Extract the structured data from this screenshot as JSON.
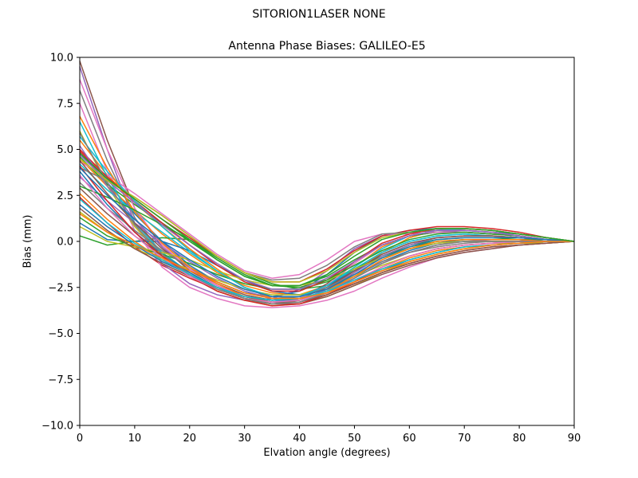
{
  "figure": {
    "suptitle": "SITORION1LASER  NONE"
  },
  "chart_data": {
    "type": "line",
    "title": "Antenna Phase Biases: GALILEO-E5",
    "xlabel": "Elvation angle (degrees)",
    "ylabel": "Bias (mm)",
    "xlim": [
      0,
      90
    ],
    "ylim": [
      -10,
      10
    ],
    "xticks": [
      0,
      10,
      20,
      30,
      40,
      50,
      60,
      70,
      80,
      90
    ],
    "xtick_labels": [
      "0",
      "10",
      "20",
      "30",
      "40",
      "50",
      "60",
      "70",
      "80",
      "90"
    ],
    "yticks": [
      10,
      7.5,
      5,
      2.5,
      0,
      -2.5,
      -5,
      -7.5,
      -10
    ],
    "ytick_labels": [
      "10.0",
      "7.5",
      "5.0",
      "2.5",
      "0.0",
      "−2.5",
      "−5.0",
      "−7.5",
      "−10.0"
    ],
    "grid": false,
    "legend": "none",
    "x": [
      0,
      5,
      10,
      15,
      20,
      25,
      30,
      35,
      40,
      45,
      50,
      55,
      60,
      65,
      70,
      75,
      80,
      85,
      90
    ],
    "series": [
      {
        "color": "#1f77b4",
        "values": [
          4.8,
          3.2,
          1.5,
          0.0,
          -1.3,
          -2.2,
          -2.8,
          -3.0,
          -2.7,
          -1.8,
          -0.6,
          0.3,
          0.6,
          0.7,
          0.6,
          0.5,
          0.4,
          0.2,
          0.0
        ]
      },
      {
        "color": "#ff7f0e",
        "values": [
          4.5,
          3.0,
          1.7,
          0.4,
          -0.7,
          -1.7,
          -2.4,
          -2.8,
          -2.9,
          -2.4,
          -1.4,
          -0.3,
          0.3,
          0.6,
          0.7,
          0.6,
          0.4,
          0.2,
          0.0
        ]
      },
      {
        "color": "#2ca02c",
        "values": [
          0.3,
          -0.2,
          0.0,
          0.2,
          0.1,
          -0.8,
          -1.7,
          -2.3,
          -2.6,
          -2.4,
          -1.6,
          -0.8,
          -0.2,
          0.1,
          0.2,
          0.2,
          0.1,
          0.1,
          0.0
        ]
      },
      {
        "color": "#d62728",
        "values": [
          2.4,
          1.0,
          -0.3,
          -1.3,
          -2.0,
          -2.6,
          -3.1,
          -3.4,
          -3.3,
          -2.9,
          -2.3,
          -1.7,
          -1.2,
          -0.8,
          -0.5,
          -0.3,
          -0.2,
          -0.1,
          0.0
        ]
      },
      {
        "color": "#9467bd",
        "values": [
          9.5,
          5.0,
          1.0,
          -1.2,
          -2.3,
          -2.9,
          -3.2,
          -3.1,
          -2.6,
          -1.6,
          -0.4,
          0.3,
          0.5,
          0.6,
          0.5,
          0.4,
          0.3,
          0.1,
          0.0
        ]
      },
      {
        "color": "#8c564b",
        "values": [
          9.8,
          5.5,
          1.8,
          -0.3,
          -1.6,
          -2.4,
          -3.0,
          -3.3,
          -3.1,
          -2.3,
          -1.1,
          -0.2,
          0.3,
          0.5,
          0.5,
          0.4,
          0.3,
          0.1,
          0.0
        ]
      },
      {
        "color": "#e377c2",
        "values": [
          7.5,
          3.8,
          0.6,
          -1.4,
          -2.5,
          -3.1,
          -3.5,
          -3.6,
          -3.5,
          -3.2,
          -2.7,
          -2.0,
          -1.4,
          -0.9,
          -0.6,
          -0.4,
          -0.2,
          -0.1,
          0.0
        ]
      },
      {
        "color": "#7f7f7f",
        "values": [
          8.2,
          4.4,
          1.3,
          -0.7,
          -1.9,
          -2.7,
          -3.2,
          -3.4,
          -3.2,
          -2.6,
          -1.6,
          -0.7,
          -0.1,
          0.2,
          0.3,
          0.3,
          0.2,
          0.1,
          0.0
        ]
      },
      {
        "color": "#bcbd22",
        "values": [
          6.0,
          3.0,
          0.8,
          -0.8,
          -1.9,
          -2.7,
          -3.2,
          -3.5,
          -3.4,
          -3.0,
          -2.4,
          -1.7,
          -1.1,
          -0.7,
          -0.4,
          -0.2,
          -0.1,
          -0.1,
          0.0
        ]
      },
      {
        "color": "#17becf",
        "values": [
          4.2,
          2.8,
          1.6,
          0.5,
          -0.6,
          -1.6,
          -2.5,
          -3.0,
          -3.0,
          -2.4,
          -1.5,
          -0.6,
          0.0,
          0.3,
          0.4,
          0.3,
          0.2,
          0.1,
          0.0
        ]
      },
      {
        "color": "#1f77b4",
        "values": [
          1.0,
          0.1,
          0.0,
          0.0,
          -0.5,
          -1.3,
          -2.1,
          -2.7,
          -2.9,
          -2.6,
          -1.9,
          -1.1,
          -0.5,
          -0.1,
          0.1,
          0.1,
          0.1,
          0.0,
          0.0
        ]
      },
      {
        "color": "#ff7f0e",
        "values": [
          5.5,
          3.6,
          2.1,
          0.8,
          -0.4,
          -1.5,
          -2.5,
          -3.1,
          -3.2,
          -2.7,
          -1.7,
          -0.6,
          0.2,
          0.6,
          0.7,
          0.6,
          0.4,
          0.2,
          0.0
        ]
      },
      {
        "color": "#2ca02c",
        "values": [
          4.6,
          3.1,
          2.0,
          1.0,
          0.0,
          -1.0,
          -1.9,
          -2.4,
          -2.4,
          -1.9,
          -1.0,
          -0.2,
          0.3,
          0.5,
          0.5,
          0.4,
          0.3,
          0.1,
          0.0
        ]
      },
      {
        "color": "#d62728",
        "values": [
          4.9,
          3.4,
          2.3,
          1.2,
          0.2,
          -0.8,
          -1.7,
          -2.2,
          -2.2,
          -1.5,
          -0.5,
          0.3,
          0.6,
          0.8,
          0.8,
          0.7,
          0.5,
          0.2,
          0.0
        ]
      },
      {
        "color": "#9467bd",
        "values": [
          3.5,
          2.2,
          1.0,
          -0.1,
          -1.1,
          -2.0,
          -2.7,
          -3.1,
          -3.1,
          -2.7,
          -2.0,
          -1.2,
          -0.6,
          -0.2,
          0.0,
          0.1,
          0.1,
          0.0,
          0.0
        ]
      },
      {
        "color": "#8c564b",
        "values": [
          2.9,
          1.5,
          0.3,
          -0.8,
          -1.7,
          -2.5,
          -3.1,
          -3.4,
          -3.4,
          -3.0,
          -2.4,
          -1.8,
          -1.3,
          -0.9,
          -0.6,
          -0.4,
          -0.2,
          -0.1,
          0.0
        ]
      },
      {
        "color": "#e377c2",
        "values": [
          4.3,
          3.6,
          2.6,
          1.5,
          0.4,
          -0.7,
          -1.6,
          -2.0,
          -1.8,
          -1.0,
          0.0,
          0.4,
          0.4,
          0.5,
          0.5,
          0.4,
          0.3,
          0.1,
          0.0
        ]
      },
      {
        "color": "#7f7f7f",
        "values": [
          4.0,
          3.3,
          2.4,
          1.4,
          0.3,
          -0.8,
          -1.7,
          -2.1,
          -2.0,
          -1.3,
          -0.3,
          0.4,
          0.5,
          0.6,
          0.6,
          0.5,
          0.3,
          0.1,
          0.0
        ]
      },
      {
        "color": "#bcbd22",
        "values": [
          1.6,
          0.5,
          -0.4,
          -1.0,
          -1.5,
          -2.1,
          -2.6,
          -2.9,
          -2.9,
          -2.5,
          -1.9,
          -1.3,
          -0.8,
          -0.4,
          -0.2,
          -0.1,
          -0.1,
          0.0,
          0.0
        ]
      },
      {
        "color": "#17becf",
        "values": [
          6.5,
          3.5,
          1.0,
          -0.6,
          -1.7,
          -2.5,
          -3.1,
          -3.3,
          -3.1,
          -2.5,
          -1.5,
          -0.6,
          0.0,
          0.3,
          0.4,
          0.3,
          0.2,
          0.1,
          0.0
        ]
      },
      {
        "color": "#1f77b4",
        "values": [
          3.8,
          2.0,
          0.5,
          -0.7,
          -1.7,
          -2.5,
          -3.0,
          -3.2,
          -3.0,
          -2.4,
          -1.6,
          -0.9,
          -0.4,
          -0.1,
          0.0,
          0.0,
          0.0,
          0.0,
          0.0
        ]
      },
      {
        "color": "#ff7f0e",
        "values": [
          2.6,
          1.2,
          0.0,
          -1.0,
          -1.9,
          -2.6,
          -3.1,
          -3.3,
          -3.2,
          -2.8,
          -2.2,
          -1.5,
          -0.9,
          -0.5,
          -0.3,
          -0.2,
          -0.1,
          0.0,
          0.0
        ]
      },
      {
        "color": "#2ca02c",
        "values": [
          1.3,
          0.3,
          -0.3,
          -0.7,
          -1.2,
          -1.8,
          -2.3,
          -2.6,
          -2.6,
          -2.2,
          -1.5,
          -0.8,
          -0.3,
          0.0,
          0.1,
          0.1,
          0.1,
          0.0,
          0.0
        ]
      },
      {
        "color": "#d62728",
        "values": [
          5.0,
          3.5,
          2.2,
          1.0,
          -0.2,
          -1.3,
          -2.2,
          -2.7,
          -2.7,
          -2.1,
          -1.1,
          -0.1,
          0.4,
          0.7,
          0.7,
          0.6,
          0.4,
          0.2,
          0.0
        ]
      },
      {
        "color": "#9467bd",
        "values": [
          5.2,
          3.0,
          1.2,
          -0.3,
          -1.5,
          -2.4,
          -3.0,
          -3.3,
          -3.2,
          -2.6,
          -1.7,
          -0.8,
          -0.2,
          0.2,
          0.3,
          0.3,
          0.2,
          0.1,
          0.0
        ]
      },
      {
        "color": "#8c564b",
        "values": [
          4.4,
          2.6,
          1.0,
          -0.4,
          -1.5,
          -2.3,
          -2.9,
          -3.2,
          -3.1,
          -2.5,
          -1.6,
          -0.7,
          -0.1,
          0.2,
          0.3,
          0.3,
          0.2,
          0.1,
          0.0
        ]
      },
      {
        "color": "#e377c2",
        "values": [
          8.8,
          5.0,
          1.8,
          -0.2,
          -1.5,
          -2.4,
          -3.0,
          -3.3,
          -3.1,
          -2.4,
          -1.2,
          -0.2,
          0.3,
          0.6,
          0.6,
          0.5,
          0.3,
          0.1,
          0.0
        ]
      },
      {
        "color": "#7f7f7f",
        "values": [
          3.2,
          1.8,
          0.6,
          -0.5,
          -1.4,
          -2.2,
          -2.8,
          -3.1,
          -3.0,
          -2.5,
          -1.8,
          -1.1,
          -0.6,
          -0.3,
          -0.1,
          0.0,
          0.0,
          0.0,
          0.0
        ]
      },
      {
        "color": "#bcbd22",
        "values": [
          0.8,
          0.0,
          -0.3,
          -0.6,
          -1.0,
          -1.6,
          -2.1,
          -2.4,
          -2.4,
          -2.1,
          -1.5,
          -0.9,
          -0.4,
          -0.1,
          0.0,
          0.0,
          0.0,
          0.0,
          0.0
        ]
      },
      {
        "color": "#17becf",
        "values": [
          5.7,
          3.8,
          2.2,
          0.8,
          -0.5,
          -1.6,
          -2.5,
          -3.0,
          -3.0,
          -2.4,
          -1.4,
          -0.4,
          0.3,
          0.6,
          0.7,
          0.6,
          0.4,
          0.2,
          0.0
        ]
      },
      {
        "color": "#1f77b4",
        "values": [
          2.0,
          0.8,
          -0.2,
          -1.1,
          -1.8,
          -2.5,
          -3.0,
          -3.2,
          -3.2,
          -2.8,
          -2.2,
          -1.6,
          -1.0,
          -0.6,
          -0.3,
          -0.2,
          -0.1,
          0.0,
          0.0
        ]
      },
      {
        "color": "#ff7f0e",
        "values": [
          6.8,
          4.0,
          1.6,
          -0.1,
          -1.4,
          -2.3,
          -3.0,
          -3.3,
          -3.2,
          -2.7,
          -1.9,
          -1.0,
          -0.4,
          0.0,
          0.1,
          0.1,
          0.1,
          0.0,
          0.0
        ]
      },
      {
        "color": "#2ca02c",
        "values": [
          3.0,
          2.4,
          1.7,
          0.9,
          0.1,
          -0.9,
          -1.8,
          -2.4,
          -2.5,
          -2.1,
          -1.3,
          -0.5,
          0.1,
          0.4,
          0.5,
          0.4,
          0.3,
          0.1,
          0.0
        ]
      },
      {
        "color": "#d62728",
        "values": [
          4.1,
          2.2,
          0.5,
          -0.8,
          -1.9,
          -2.7,
          -3.2,
          -3.5,
          -3.4,
          -2.9,
          -2.2,
          -1.4,
          -0.8,
          -0.4,
          -0.2,
          -0.1,
          0.0,
          0.0,
          0.0
        ]
      },
      {
        "color": "#9467bd",
        "values": [
          4.7,
          3.3,
          2.1,
          0.9,
          -0.2,
          -1.2,
          -2.1,
          -2.6,
          -2.6,
          -2.0,
          -1.1,
          -0.2,
          0.3,
          0.6,
          0.6,
          0.5,
          0.3,
          0.1,
          0.0
        ]
      },
      {
        "color": "#8c564b",
        "values": [
          1.8,
          0.6,
          -0.4,
          -1.2,
          -1.9,
          -2.5,
          -3.0,
          -3.3,
          -3.3,
          -2.9,
          -2.3,
          -1.7,
          -1.2,
          -0.8,
          -0.5,
          -0.3,
          -0.2,
          -0.1,
          0.0
        ]
      },
      {
        "color": "#e377c2",
        "values": [
          3.6,
          1.8,
          0.3,
          -0.9,
          -1.9,
          -2.6,
          -3.1,
          -3.3,
          -3.2,
          -2.8,
          -2.1,
          -1.4,
          -0.8,
          -0.4,
          -0.2,
          -0.1,
          0.0,
          0.0,
          0.0
        ]
      },
      {
        "color": "#7f7f7f",
        "values": [
          5.9,
          3.2,
          0.9,
          -0.7,
          -1.8,
          -2.6,
          -3.1,
          -3.4,
          -3.3,
          -2.8,
          -2.0,
          -1.2,
          -0.6,
          -0.2,
          0.0,
          0.0,
          0.0,
          0.0,
          0.0
        ]
      },
      {
        "color": "#bcbd22",
        "values": [
          4.5,
          3.3,
          2.4,
          1.4,
          0.3,
          -0.8,
          -1.7,
          -2.2,
          -2.2,
          -1.6,
          -0.6,
          0.2,
          0.5,
          0.7,
          0.7,
          0.6,
          0.4,
          0.2,
          0.0
        ]
      },
      {
        "color": "#17becf",
        "values": [
          2.3,
          1.0,
          -0.1,
          -1.0,
          -1.8,
          -2.5,
          -3.0,
          -3.2,
          -3.1,
          -2.7,
          -2.1,
          -1.5,
          -1.0,
          -0.6,
          -0.3,
          -0.2,
          -0.1,
          0.0,
          0.0
        ]
      },
      {
        "color": "#1f77b4",
        "values": [
          4.0,
          2.5,
          1.2,
          0.0,
          -1.0,
          -1.9,
          -2.6,
          -3.0,
          -3.0,
          -2.6,
          -1.8,
          -0.9,
          -0.3,
          0.1,
          0.2,
          0.2,
          0.2,
          0.1,
          0.0
        ]
      },
      {
        "color": "#ff7f0e",
        "values": [
          1.5,
          0.5,
          -0.2,
          -0.9,
          -1.6,
          -2.2,
          -2.8,
          -3.1,
          -3.1,
          -2.8,
          -2.2,
          -1.6,
          -1.1,
          -0.7,
          -0.4,
          -0.2,
          -0.1,
          0.0,
          0.0
        ]
      },
      {
        "color": "#2ca02c",
        "values": [
          4.8,
          3.4,
          2.3,
          1.2,
          0.1,
          -1.0,
          -1.9,
          -2.4,
          -2.4,
          -1.8,
          -0.8,
          0.1,
          0.5,
          0.7,
          0.7,
          0.6,
          0.4,
          0.2,
          0.0
        ]
      }
    ]
  }
}
